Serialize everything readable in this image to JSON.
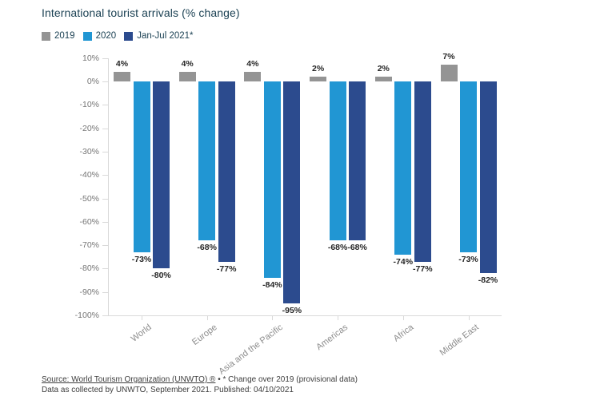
{
  "title": "International tourist arrivals (% change)",
  "legend": {
    "items": [
      {
        "label": "2019",
        "color": "#949494"
      },
      {
        "label": "2020",
        "color": "#2196d3"
      },
      {
        "label": "Jan-Jul 2021*",
        "color": "#2c4b8e"
      }
    ]
  },
  "chart_data": {
    "type": "bar",
    "title": "International tourist arrivals (% change)",
    "categories": [
      "World",
      "Europe",
      "Asia and the Pacific",
      "Americas",
      "Africa",
      "Middle East"
    ],
    "series": [
      {
        "name": "2019",
        "color": "#949494",
        "values": [
          4,
          4,
          4,
          2,
          2,
          7
        ]
      },
      {
        "name": "2020",
        "color": "#2196d3",
        "values": [
          -73,
          -68,
          -84,
          -68,
          -74,
          -73
        ]
      },
      {
        "name": "Jan-Jul 2021*",
        "color": "#2c4b8e",
        "values": [
          -80,
          -77,
          -95,
          -68,
          -77,
          -82
        ]
      }
    ],
    "value_label_format": "{v}%",
    "xlabel": "",
    "ylabel": "",
    "ylim": [
      -100,
      10
    ],
    "ytick_step": 10,
    "ytick_format": "{v}%",
    "grid": false,
    "legend_position": "top-left"
  },
  "footer": {
    "source_link": "Source: World Tourism Organization (UNWTO) ®",
    "separator": " • ",
    "note": "* Change over 2019 (provisional data)",
    "line2": "Data as collected by UNWTO, September 2021. Published: 04/10/2021"
  }
}
